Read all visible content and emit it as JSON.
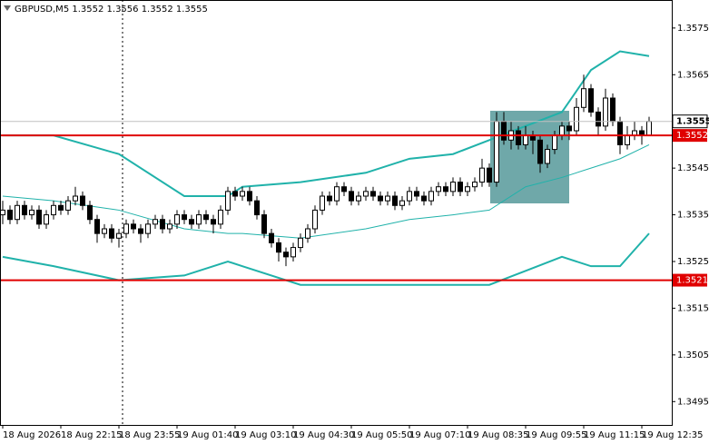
{
  "chart_data": {
    "type": "candlestick",
    "title": "GBPUSD,M5  1.3552 1.3556 1.3552 1.3555",
    "categories": [
      "18 Aug 2026",
      "18 Aug 22:15",
      "18 Aug 23:55",
      "19 Aug 01:40",
      "19 Aug 03:10",
      "19 Aug 04:30",
      "19 Aug 05:50",
      "19 Aug 07:10",
      "19 Aug 08:35",
      "19 Aug 09:55",
      "19 Aug 11:15",
      "19 Aug 12:35"
    ],
    "candles": [
      [
        1.3535,
        1.3538,
        1.3533,
        1.3536
      ],
      [
        1.3536,
        1.3537,
        1.3533,
        1.3534
      ],
      [
        1.3534,
        1.3538,
        1.3533,
        1.3537
      ],
      [
        1.3537,
        1.3538,
        1.3534,
        1.3535
      ],
      [
        1.3535,
        1.3537,
        1.3534,
        1.3536
      ],
      [
        1.3536,
        1.3537,
        1.3532,
        1.3533
      ],
      [
        1.3533,
        1.3536,
        1.3532,
        1.3535
      ],
      [
        1.3535,
        1.3538,
        1.3534,
        1.3537
      ],
      [
        1.3537,
        1.3538,
        1.3535,
        1.3536
      ],
      [
        1.3536,
        1.3539,
        1.3535,
        1.3538
      ],
      [
        1.3538,
        1.3541,
        1.3537,
        1.3539
      ],
      [
        1.3539,
        1.354,
        1.3536,
        1.3537
      ],
      [
        1.3537,
        1.3538,
        1.3533,
        1.3534
      ],
      [
        1.3534,
        1.3535,
        1.3529,
        1.3531
      ],
      [
        1.3531,
        1.3533,
        1.353,
        1.3532
      ],
      [
        1.3532,
        1.3533,
        1.3529,
        1.353
      ],
      [
        1.353,
        1.3532,
        1.3528,
        1.3531
      ],
      [
        1.3531,
        1.3534,
        1.353,
        1.3533
      ],
      [
        1.3533,
        1.3534,
        1.3531,
        1.3532
      ],
      [
        1.3532,
        1.3533,
        1.3529,
        1.3531
      ],
      [
        1.3531,
        1.3534,
        1.353,
        1.3533
      ],
      [
        1.3533,
        1.3535,
        1.3532,
        1.3534
      ],
      [
        1.3534,
        1.3535,
        1.3531,
        1.3532
      ],
      [
        1.3532,
        1.3534,
        1.3531,
        1.3533
      ],
      [
        1.3533,
        1.3536,
        1.3532,
        1.3535
      ],
      [
        1.3535,
        1.3536,
        1.3533,
        1.3534
      ],
      [
        1.3534,
        1.3535,
        1.3532,
        1.3533
      ],
      [
        1.3533,
        1.3536,
        1.3532,
        1.3535
      ],
      [
        1.3535,
        1.3536,
        1.3533,
        1.3534
      ],
      [
        1.3534,
        1.3535,
        1.3531,
        1.3533
      ],
      [
        1.3533,
        1.3537,
        1.3532,
        1.3536
      ],
      [
        1.3536,
        1.3541,
        1.3535,
        1.354
      ],
      [
        1.354,
        1.3541,
        1.3538,
        1.3539
      ],
      [
        1.3539,
        1.3541,
        1.3538,
        1.354
      ],
      [
        1.354,
        1.3541,
        1.3537,
        1.3538
      ],
      [
        1.3538,
        1.3539,
        1.3534,
        1.3535
      ],
      [
        1.3535,
        1.3536,
        1.353,
        1.3531
      ],
      [
        1.3531,
        1.3532,
        1.3528,
        1.3529
      ],
      [
        1.3529,
        1.353,
        1.3525,
        1.3527
      ],
      [
        1.3527,
        1.3528,
        1.3524,
        1.3526
      ],
      [
        1.3526,
        1.3529,
        1.3525,
        1.3528
      ],
      [
        1.3528,
        1.3531,
        1.3527,
        1.353
      ],
      [
        1.353,
        1.3533,
        1.3529,
        1.3532
      ],
      [
        1.3532,
        1.3537,
        1.3531,
        1.3536
      ],
      [
        1.3536,
        1.354,
        1.3535,
        1.3539
      ],
      [
        1.3539,
        1.354,
        1.3537,
        1.3538
      ],
      [
        1.3538,
        1.3542,
        1.3537,
        1.3541
      ],
      [
        1.3541,
        1.3542,
        1.3539,
        1.354
      ],
      [
        1.354,
        1.3541,
        1.3537,
        1.3538
      ],
      [
        1.3538,
        1.354,
        1.3537,
        1.3539
      ],
      [
        1.3539,
        1.3541,
        1.3538,
        1.354
      ],
      [
        1.354,
        1.3541,
        1.3538,
        1.3539
      ],
      [
        1.3539,
        1.354,
        1.3537,
        1.3538
      ],
      [
        1.3538,
        1.354,
        1.3537,
        1.3539
      ],
      [
        1.3539,
        1.354,
        1.3536,
        1.3537
      ],
      [
        1.3537,
        1.3539,
        1.3536,
        1.3538
      ],
      [
        1.3538,
        1.3541,
        1.3537,
        1.354
      ],
      [
        1.354,
        1.3541,
        1.3538,
        1.3539
      ],
      [
        1.3539,
        1.354,
        1.3537,
        1.3538
      ],
      [
        1.3538,
        1.3541,
        1.3537,
        1.354
      ],
      [
        1.354,
        1.3542,
        1.3539,
        1.3541
      ],
      [
        1.3541,
        1.3542,
        1.3539,
        1.354
      ],
      [
        1.354,
        1.3543,
        1.3539,
        1.3542
      ],
      [
        1.3542,
        1.3543,
        1.3539,
        1.354
      ],
      [
        1.354,
        1.3542,
        1.3539,
        1.3541
      ],
      [
        1.3541,
        1.3543,
        1.354,
        1.3542
      ],
      [
        1.3542,
        1.3547,
        1.3541,
        1.3545
      ],
      [
        1.3545,
        1.3546,
        1.3541,
        1.3542
      ],
      [
        1.3542,
        1.3557,
        1.3541,
        1.3555
      ],
      [
        1.3555,
        1.3557,
        1.355,
        1.3551
      ],
      [
        1.3551,
        1.3555,
        1.3549,
        1.3553
      ],
      [
        1.3553,
        1.3554,
        1.3549,
        1.355
      ],
      [
        1.355,
        1.3554,
        1.3549,
        1.3552
      ],
      [
        1.3552,
        1.3553,
        1.3548,
        1.3551
      ],
      [
        1.3551,
        1.3552,
        1.3544,
        1.3546
      ],
      [
        1.3546,
        1.355,
        1.3545,
        1.3549
      ],
      [
        1.3549,
        1.3553,
        1.3548,
        1.3552
      ],
      [
        1.3552,
        1.3555,
        1.3551,
        1.3554
      ],
      [
        1.3554,
        1.3555,
        1.3551,
        1.3553
      ],
      [
        1.3553,
        1.356,
        1.3552,
        1.3558
      ],
      [
        1.3558,
        1.3565,
        1.3557,
        1.3562
      ],
      [
        1.3562,
        1.3563,
        1.3556,
        1.3557
      ],
      [
        1.3557,
        1.3558,
        1.3552,
        1.3554
      ],
      [
        1.3554,
        1.3562,
        1.3553,
        1.356
      ],
      [
        1.356,
        1.3561,
        1.3554,
        1.3555
      ],
      [
        1.3555,
        1.3556,
        1.3548,
        1.355
      ],
      [
        1.355,
        1.3554,
        1.3549,
        1.3552
      ],
      [
        1.3552,
        1.3555,
        1.3551,
        1.3553
      ],
      [
        1.3553,
        1.3554,
        1.355,
        1.3552
      ],
      [
        1.3552,
        1.3556,
        1.3552,
        1.3555
      ]
    ],
    "bands": [
      {
        "color": "#20b2aa",
        "width": 2,
        "x": [
          0,
          7,
          16,
          25,
          31,
          33,
          41,
          50,
          56,
          62,
          67,
          72,
          77,
          81,
          85,
          89
        ],
        "values": [
          1.3552,
          1.3552,
          1.3548,
          1.3539,
          1.3539,
          1.3541,
          1.3542,
          1.3544,
          1.3547,
          1.3548,
          1.3551,
          1.3554,
          1.3557,
          1.3566,
          1.357,
          1.3569
        ]
      },
      {
        "color": "#20b2aa",
        "width": 1,
        "x": [
          0,
          7,
          16,
          25,
          31,
          33,
          41,
          50,
          56,
          62,
          67,
          72,
          77,
          81,
          85,
          89
        ],
        "values": [
          1.3539,
          1.3538,
          1.3536,
          1.3532,
          1.3531,
          1.3531,
          1.353,
          1.3532,
          1.3534,
          1.3535,
          1.3536,
          1.3541,
          1.3543,
          1.3545,
          1.3547,
          1.355
        ]
      },
      {
        "color": "#20b2aa",
        "width": 2,
        "x": [
          0,
          7,
          16,
          25,
          31,
          33,
          41,
          50,
          56,
          62,
          67,
          72,
          77,
          81,
          85,
          89
        ],
        "values": [
          1.3526,
          1.3524,
          1.3521,
          1.3522,
          1.3525,
          1.3524,
          1.352,
          1.352,
          1.352,
          1.352,
          1.352,
          1.3523,
          1.3526,
          1.3524,
          1.3524,
          1.3531
        ]
      }
    ],
    "levels": [
      {
        "value": 1.3552,
        "color": "#e00000"
      },
      {
        "value": 1.3521,
        "color": "#e00000"
      }
    ],
    "current_price": 1.3555,
    "ylim": [
      1.349,
      1.3581
    ],
    "yticks": [
      1.3495,
      1.3505,
      1.3515,
      1.3525,
      1.3535,
      1.3545,
      1.3565,
      1.3575
    ]
  }
}
